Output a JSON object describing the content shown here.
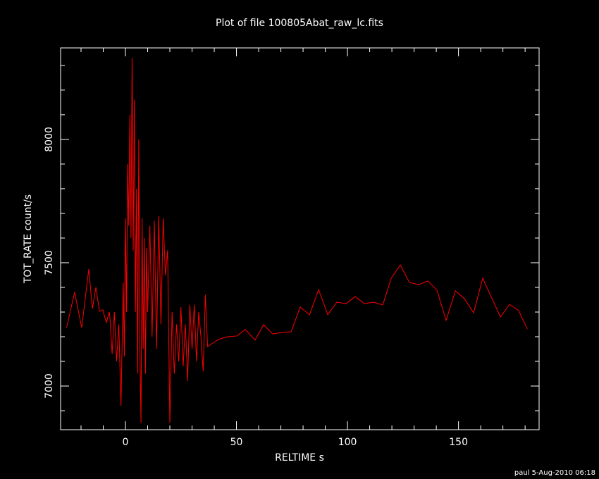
{
  "chart_data": {
    "type": "line",
    "title": "Plot of file 100805Abat_raw_lc.fits",
    "xlabel": "RELTIME  s",
    "ylabel": "TOT_RATE  count/s",
    "footer": "paul  5-Aug-2010 06:18",
    "color": "#ff0000",
    "axis_color": "#ffffff",
    "xlim": [
      -29.2,
      186.3
    ],
    "ylim": [
      6823,
      8371
    ],
    "xticks": [
      0,
      50,
      100,
      150
    ],
    "yticks": [
      7000,
      7500,
      8000
    ],
    "xminorticks": [
      -20,
      -10,
      10,
      20,
      30,
      40,
      60,
      70,
      80,
      90,
      110,
      120,
      130,
      140,
      160,
      170,
      180
    ],
    "yminorticks": [
      6900,
      7100,
      7200,
      7300,
      7400,
      7600,
      7700,
      7800,
      7900,
      8100,
      8200,
      8300
    ],
    "x": [
      -26.5,
      -22.9,
      -19.7,
      -16.5,
      -14.9,
      -13.3,
      -11.7,
      -10.2,
      -8.6,
      -7.3,
      -7,
      -6,
      -5,
      -4,
      -3,
      -2,
      -1,
      -0.5,
      0,
      0.5,
      1,
      1.5,
      2,
      2.5,
      3,
      3.5,
      4,
      4.5,
      5,
      5.5,
      6,
      6.5,
      7,
      7.5,
      8,
      8.5,
      9,
      9.5,
      10,
      11,
      12,
      13,
      14,
      15,
      16,
      17,
      18,
      19,
      20,
      21,
      22,
      23,
      24,
      25,
      26,
      27,
      28,
      29,
      30,
      31,
      32,
      33,
      34,
      35,
      36,
      37,
      41.9,
      46,
      50.2,
      54,
      58.4,
      62.2,
      66.3,
      70.5,
      74.6,
      78.7,
      82.9,
      87,
      91.1,
      95.2,
      99.4,
      103.5,
      107.6,
      111.7,
      115.9,
      119.7,
      123.8,
      127.9,
      132.1,
      136.2,
      140.3,
      144.4,
      148.6,
      152.7,
      156.8,
      160.9,
      164.8,
      168.9,
      173,
      177.1,
      181
    ],
    "values": [
      7237,
      7380,
      7237,
      7474,
      7314,
      7400,
      7303,
      7309,
      7257,
      7300,
      7280,
      7130,
      7300,
      7100,
      7250,
      6920,
      7420,
      7120,
      7680,
      7300,
      7900,
      7650,
      8100,
      7600,
      8330,
      7550,
      8160,
      7300,
      7800,
      7050,
      8000,
      7150,
      6850,
      7680,
      7150,
      7600,
      7050,
      7560,
      7300,
      7650,
      7200,
      7670,
      7150,
      7690,
      7250,
      7680,
      7450,
      7550,
      6850,
      7300,
      7050,
      7250,
      7100,
      7320,
      7080,
      7250,
      7020,
      7330,
      7150,
      7330,
      7100,
      7300,
      7200,
      7060,
      7370,
      7160,
      7189,
      7200,
      7203,
      7229,
      7186,
      7249,
      7211,
      7217,
      7220,
      7320,
      7289,
      7391,
      7289,
      7340,
      7334,
      7363,
      7334,
      7340,
      7329,
      7437,
      7491,
      7420,
      7411,
      7426,
      7389,
      7266,
      7386,
      7354,
      7297,
      7437,
      7360,
      7280,
      7331,
      7306,
      7231
    ]
  }
}
